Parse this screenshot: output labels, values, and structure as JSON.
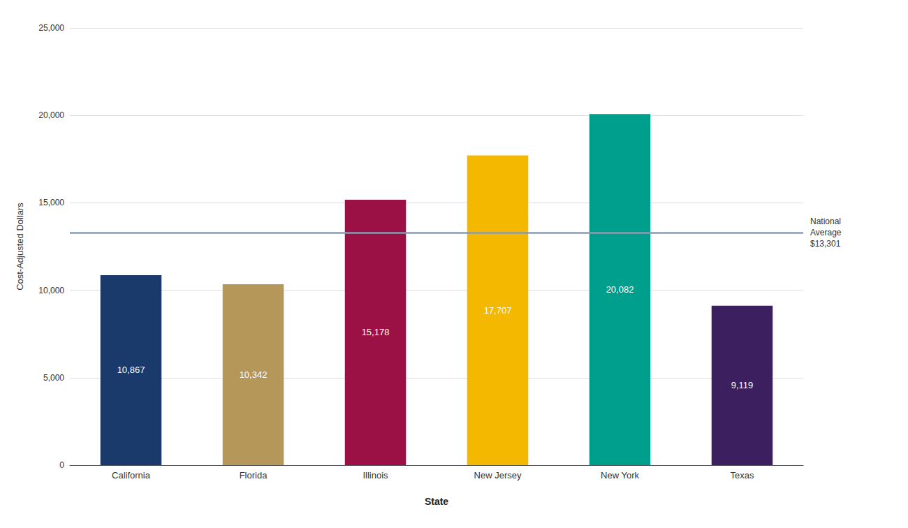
{
  "chart_data": {
    "type": "bar",
    "categories": [
      "California",
      "Florida",
      "Illinois",
      "New Jersey",
      "New York",
      "Texas"
    ],
    "values": [
      10867,
      10342,
      15178,
      17707,
      20082,
      9119
    ],
    "value_labels": [
      "10,867",
      "10,342",
      "15,178",
      "17,707",
      "20,082",
      "9,119"
    ],
    "data_labels": true,
    "colors": [
      "#1a3a6b",
      "#b5975a",
      "#9b1045",
      "#f5b800",
      "#009e8c",
      "#3b1f5e"
    ],
    "xlabel": "State",
    "ylabel": "Cost-Adjusted Dollars",
    "ylim": [
      0,
      25000
    ],
    "yticks": [
      0,
      {
        "value": 5000,
        "label": "5,000"
      },
      {
        "value": 10000,
        "label": "10,000"
      },
      {
        "value": 15000,
        "label": "15,000"
      },
      {
        "value": 20000,
        "label": "20,000"
      },
      {
        "value": 25000,
        "label": "25,000"
      }
    ],
    "grid": true,
    "reference_line": {
      "y": 13301,
      "label": "National\nAverage\n$13,301",
      "color": "#8a9bb0"
    }
  }
}
